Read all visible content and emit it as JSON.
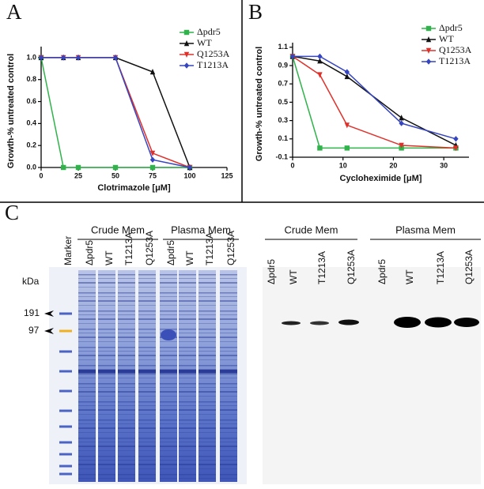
{
  "panel_labels": {
    "a": "A",
    "b": "B",
    "c": "C"
  },
  "chart_data": [
    {
      "type": "line",
      "xlabel": "Clotrimazole [μM]",
      "ylabel": "Growth-% untreated control",
      "x": [
        0,
        15,
        25,
        50,
        75,
        100
      ],
      "xlim": [
        0,
        125
      ],
      "xticks": [
        0,
        25,
        50,
        75,
        100,
        125
      ],
      "ylim": [
        0,
        1.1
      ],
      "yticks": [
        {
          "value": 0,
          "label": "0.0"
        },
        0.2,
        0.4,
        0.6,
        0.8,
        {
          "value": 1,
          "label": "1.0"
        }
      ],
      "legend": "upper right",
      "series": [
        {
          "name": "Δpdr5",
          "color": "#2fb34a",
          "marker": "square",
          "values": [
            1.0,
            0,
            0,
            0,
            0,
            0
          ]
        },
        {
          "name": "WT",
          "color": "#111111",
          "marker": "triangle-up",
          "values": [
            1.0,
            1.0,
            1.0,
            1.0,
            0.87,
            0
          ]
        },
        {
          "name": "Q1253A",
          "color": "#e0302a",
          "marker": "triangle-down",
          "values": [
            1.0,
            1.0,
            1.0,
            1.0,
            0.13,
            0
          ]
        },
        {
          "name": "T1213A",
          "color": "#3545c0",
          "marker": "diamond",
          "values": [
            1.0,
            1.0,
            1.0,
            1.0,
            0.07,
            0
          ]
        }
      ]
    },
    {
      "type": "line",
      "xlabel": "Cycloheximide [μM]",
      "ylabel": "Growth-% untreated control",
      "x": [
        0,
        5.4,
        10.8,
        21.6,
        32.4
      ],
      "xlim": [
        0,
        35
      ],
      "xticks": [
        0,
        10,
        20,
        30
      ],
      "ylim": [
        -0.1,
        1.15
      ],
      "yticks": [
        -0.1,
        0.1,
        0.3,
        0.5,
        0.7,
        0.9,
        1.1
      ],
      "legend": "upper right",
      "series": [
        {
          "name": "Δpdr5",
          "color": "#2fb34a",
          "marker": "square",
          "values": [
            1.0,
            0,
            0,
            0,
            0
          ]
        },
        {
          "name": "WT",
          "color": "#111111",
          "marker": "triangle-up",
          "values": [
            1.0,
            0.95,
            0.78,
            0.33,
            0.03
          ]
        },
        {
          "name": "Q1253A",
          "color": "#e0302a",
          "marker": "triangle-down",
          "values": [
            1.0,
            0.8,
            0.25,
            0.03,
            0
          ]
        },
        {
          "name": "T1213A",
          "color": "#3545c0",
          "marker": "diamond",
          "values": [
            1.0,
            1.0,
            0.83,
            0.27,
            0.1
          ]
        }
      ]
    }
  ],
  "gel": {
    "groups": [
      "Crude Mem",
      "Plasma Mem"
    ],
    "lanes": [
      "Marker",
      "Δpdr5",
      "WT",
      "T1213A",
      "Q1253A",
      "Δpdr5",
      "WT",
      "T1213A",
      "Q1253A"
    ],
    "unit": "kDa",
    "markers": [
      191,
      97
    ]
  },
  "blot": {
    "groups": [
      "Crude Mem",
      "Plasma Mem"
    ],
    "lanes": [
      "Δpdr5",
      "WT",
      "T1213A",
      "Q1253A",
      "Δpdr5",
      "WT",
      "T1213A",
      "Q1253A"
    ]
  }
}
